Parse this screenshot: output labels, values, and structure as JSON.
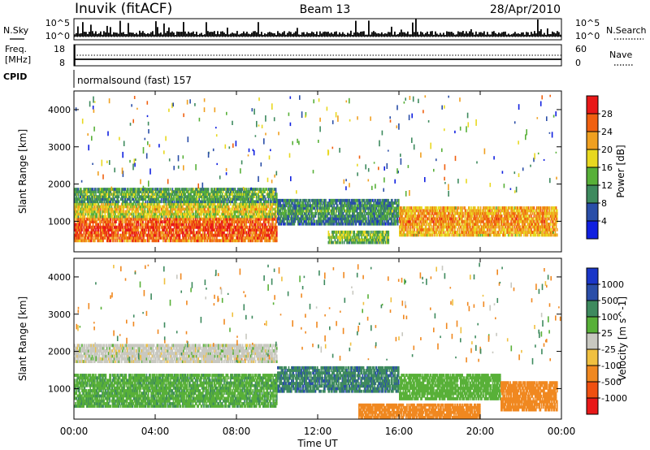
{
  "header": {
    "station": "Inuvik (fitACF)",
    "beam": "Beam 13",
    "date": "28/Apr/2010"
  },
  "top_panels": {
    "nsky": {
      "label": "N.Sky",
      "right_label": "N.Search",
      "ticks_left": [
        "10^5",
        "10^0"
      ],
      "ticks_right": [
        "10^5",
        "10^0"
      ]
    },
    "freq": {
      "label_line1": "Freq.",
      "label_line2": "[MHz]",
      "right_label": "Nave",
      "ticks_left": [
        "18",
        "8"
      ],
      "ticks_right": [
        "60",
        "0"
      ]
    },
    "cpid": {
      "label": "CPID",
      "mode": "normalsound (fast) 157"
    }
  },
  "colors": {
    "power": [
      "#1020e0",
      "#2a4ea8",
      "#3e8a5e",
      "#58b038",
      "#e8d820",
      "#f0a020",
      "#f06010",
      "#e81818"
    ],
    "velocity": [
      "#e81818",
      "#f05010",
      "#f08820",
      "#f0c040",
      "#c8c8c0",
      "#58b038",
      "#3e8a5e",
      "#2a4ea8",
      "#1a36c8"
    ]
  },
  "chart_data": [
    {
      "type": "heatmap",
      "panel": "power",
      "ylabel": "Slant Range [km]",
      "yticks": [
        "4000",
        "3000",
        "2000",
        "1000"
      ],
      "ylim": [
        180,
        4500
      ],
      "xlim": [
        0,
        24
      ],
      "colorbar": {
        "label": "Power [dB]",
        "ticks": [
          "28",
          "24",
          "20",
          "16",
          "12",
          "8",
          "4"
        ],
        "range": [
          0,
          32
        ]
      },
      "bands": [
        {
          "t_start": 0,
          "t_end": 10,
          "range_lo": 450,
          "range_hi": 1100,
          "level": 28
        },
        {
          "t_start": 0,
          "t_end": 10,
          "range_lo": 1100,
          "range_hi": 1500,
          "level": 20
        },
        {
          "t_start": 0,
          "t_end": 10,
          "range_lo": 1500,
          "range_hi": 1900,
          "level": 14
        },
        {
          "t_start": 10,
          "t_end": 16,
          "range_lo": 900,
          "range_hi": 1600,
          "level": 12
        },
        {
          "t_start": 16,
          "t_end": 23.8,
          "range_lo": 600,
          "range_hi": 1400,
          "level": 24
        },
        {
          "t_start": 12.5,
          "t_end": 15.5,
          "range_lo": 400,
          "range_hi": 750,
          "level": 16
        }
      ]
    },
    {
      "type": "heatmap",
      "panel": "velocity",
      "ylabel": "Slant Range [km]",
      "xlabel": "Time UT",
      "xticks": [
        "00:00",
        "04:00",
        "08:00",
        "12:00",
        "16:00",
        "20:00",
        "00:00"
      ],
      "yticks": [
        "4000",
        "3000",
        "2000",
        "1000"
      ],
      "ylim": [
        180,
        4500
      ],
      "xlim": [
        0,
        24
      ],
      "colorbar": {
        "label": "Velocity [m s^-1]",
        "ticks": [
          "1000",
          "500",
          "100",
          "25",
          "-25",
          "-100",
          "-500",
          "-1000"
        ]
      },
      "bands": [
        {
          "t_start": 0,
          "t_end": 10,
          "range_lo": 1700,
          "range_hi": 2200,
          "level": 0
        },
        {
          "t_start": 0,
          "t_end": 10,
          "range_lo": 500,
          "range_hi": 1400,
          "level": 80
        },
        {
          "t_start": 10,
          "t_end": 16,
          "range_lo": 900,
          "range_hi": 1600,
          "level": 400
        },
        {
          "t_start": 16,
          "t_end": 21,
          "range_lo": 700,
          "range_hi": 1400,
          "level": 60
        },
        {
          "t_start": 21,
          "t_end": 23.8,
          "range_lo": 400,
          "range_hi": 1200,
          "level": -300
        },
        {
          "t_start": 14,
          "t_end": 20,
          "range_lo": 200,
          "range_hi": 600,
          "level": -200
        }
      ]
    }
  ]
}
